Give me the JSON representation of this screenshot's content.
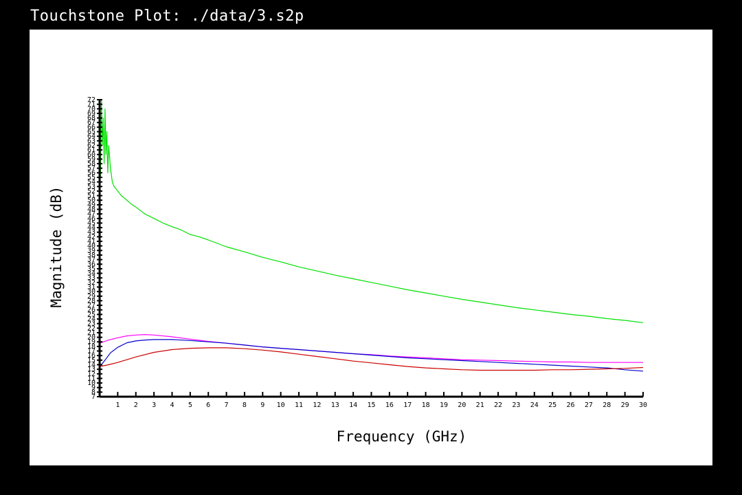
{
  "window": {
    "title": "Touchstone Plot: ./data/3.s2p"
  },
  "chart_data": {
    "type": "line",
    "title": "",
    "xlabel": "Frequency (GHz)",
    "ylabel": "Magnitude (dB)",
    "xlim": [
      0,
      30
    ],
    "ylim": [
      7,
      72
    ],
    "x_ticks": [
      1,
      2,
      3,
      4,
      5,
      6,
      7,
      8,
      9,
      10,
      11,
      12,
      13,
      14,
      15,
      16,
      17,
      18,
      19,
      20,
      21,
      22,
      23,
      24,
      25,
      26,
      27,
      28,
      29,
      30
    ],
    "y_ticks": [
      7,
      8,
      9,
      10,
      11,
      12,
      13,
      14,
      15,
      16,
      17,
      18,
      19,
      20,
      21,
      22,
      23,
      24,
      25,
      26,
      27,
      28,
      29,
      30,
      31,
      32,
      33,
      34,
      35,
      36,
      37,
      38,
      39,
      40,
      41,
      42,
      43,
      44,
      45,
      46,
      47,
      48,
      49,
      50,
      51,
      52,
      53,
      54,
      55,
      56,
      57,
      58,
      59,
      60,
      61,
      62,
      63,
      64,
      65,
      66,
      67,
      68,
      69,
      70,
      71,
      72
    ],
    "grid": false,
    "series": [
      {
        "color": "#00e000",
        "x": [
          0.05,
          0.1,
          0.15,
          0.2,
          0.25,
          0.3,
          0.35,
          0.4,
          0.45,
          0.5,
          0.6,
          0.7,
          0.8,
          1,
          1.2,
          1.5,
          1.8,
          2,
          2.5,
          3,
          3.5,
          4,
          4.5,
          5,
          5.5,
          6,
          7,
          8,
          9,
          10,
          11,
          12,
          13,
          14,
          15,
          16,
          17,
          18,
          19,
          20,
          21,
          22,
          23,
          24,
          25,
          26,
          27,
          28,
          29,
          30
        ],
        "y": [
          55,
          72,
          62,
          68,
          58,
          70,
          60,
          65,
          56,
          62,
          57,
          54,
          53,
          52,
          51,
          50,
          49,
          48.5,
          47,
          46,
          45,
          44.2,
          43.5,
          42.5,
          42,
          41.3,
          39.8,
          38.7,
          37.5,
          36.5,
          35.4,
          34.5,
          33.6,
          32.8,
          32,
          31.2,
          30.4,
          29.7,
          29,
          28.3,
          27.7,
          27.1,
          26.5,
          26,
          25.5,
          25,
          24.6,
          24.1,
          23.7,
          23.2
        ]
      },
      {
        "color": "#ff00ff",
        "x": [
          0,
          0.5,
          1,
          1.5,
          2,
          2.5,
          3,
          4,
          5,
          6,
          7,
          8,
          9,
          10,
          11,
          12,
          13,
          14,
          15,
          16,
          17,
          18,
          19,
          20,
          21,
          22,
          23,
          24,
          25,
          26,
          27,
          28,
          29,
          30
        ],
        "y": [
          18.7,
          19.4,
          19.9,
          20.3,
          20.5,
          20.6,
          20.5,
          20.1,
          19.6,
          19.1,
          18.7,
          18.3,
          17.9,
          17.6,
          17.3,
          17,
          16.7,
          16.4,
          16.2,
          15.9,
          15.7,
          15.5,
          15.3,
          15.1,
          15,
          14.9,
          14.8,
          14.7,
          14.6,
          14.6,
          14.5,
          14.5,
          14.5,
          14.5
        ]
      },
      {
        "color": "#0000cc",
        "x": [
          0,
          0.3,
          0.6,
          1,
          1.5,
          2,
          2.5,
          3,
          4,
          5,
          6,
          7,
          8,
          9,
          10,
          11,
          12,
          13,
          14,
          15,
          16,
          17,
          18,
          19,
          20,
          21,
          22,
          23,
          24,
          25,
          26,
          27,
          28,
          29,
          30
        ],
        "y": [
          13.5,
          15,
          16.6,
          17.8,
          18.8,
          19.2,
          19.4,
          19.5,
          19.5,
          19.3,
          19,
          18.7,
          18.3,
          17.9,
          17.6,
          17.3,
          17,
          16.7,
          16.4,
          16.1,
          15.8,
          15.5,
          15.3,
          15.1,
          14.9,
          14.7,
          14.5,
          14.3,
          14.1,
          13.9,
          13.7,
          13.5,
          13.3,
          12.9,
          12.6
        ]
      },
      {
        "color": "#cc0000",
        "x": [
          0,
          0.5,
          1,
          2,
          3,
          4,
          5,
          6,
          7,
          8,
          9,
          10,
          11,
          12,
          13,
          14,
          15,
          16,
          17,
          18,
          19,
          20,
          21,
          22,
          23,
          24,
          25,
          26,
          27,
          28,
          29,
          30
        ],
        "y": [
          13.6,
          14,
          14.5,
          15.7,
          16.7,
          17.3,
          17.6,
          17.7,
          17.7,
          17.5,
          17.2,
          16.8,
          16.3,
          15.8,
          15.3,
          14.8,
          14.4,
          14,
          13.6,
          13.3,
          13.1,
          12.9,
          12.8,
          12.8,
          12.8,
          12.8,
          12.9,
          12.9,
          13,
          13.1,
          13.2,
          13.4
        ]
      }
    ]
  }
}
